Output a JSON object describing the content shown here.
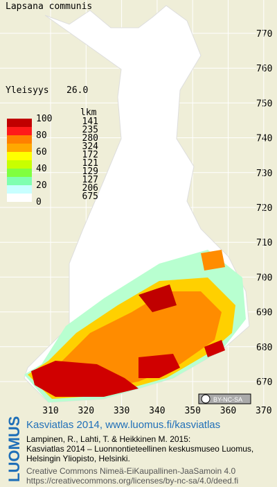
{
  "title": "Lapsana communis",
  "frequency": {
    "label": "Yleisyys",
    "value": "26.0"
  },
  "legend": {
    "scale_labels": [
      100,
      80,
      60,
      40,
      20,
      0
    ],
    "count_header": "lkm",
    "counts": [
      141,
      235,
      280,
      324,
      172,
      121,
      129,
      127,
      206,
      675
    ]
  },
  "grid_labels": {
    "north": [
      770,
      760,
      750,
      740,
      730,
      720,
      710,
      700,
      690,
      680,
      670
    ],
    "east": [
      310,
      320,
      330,
      340,
      350,
      360,
      370
    ]
  },
  "badge": "BY-NC-SA",
  "logo": "LUOMUS",
  "footer": {
    "link": "Kasviatlas 2014, www.luomus.fi/kasviatlas",
    "citation": [
      "Lampinen, R., Lahti, T. & Heikkinen M. 2015:",
      "Kasviatlas 2014 – Luonnontieteellinen keskusmuseo Luomus,",
      "Helsingin Yliopisto, Helsinki."
    ],
    "license": [
      "Creative Commons Nimeä-EiKaupallinen-JaaSamoin 4.0",
      "https://creativecommons.org/licenses/by-nc-sa/4.0/deed.fi"
    ]
  }
}
